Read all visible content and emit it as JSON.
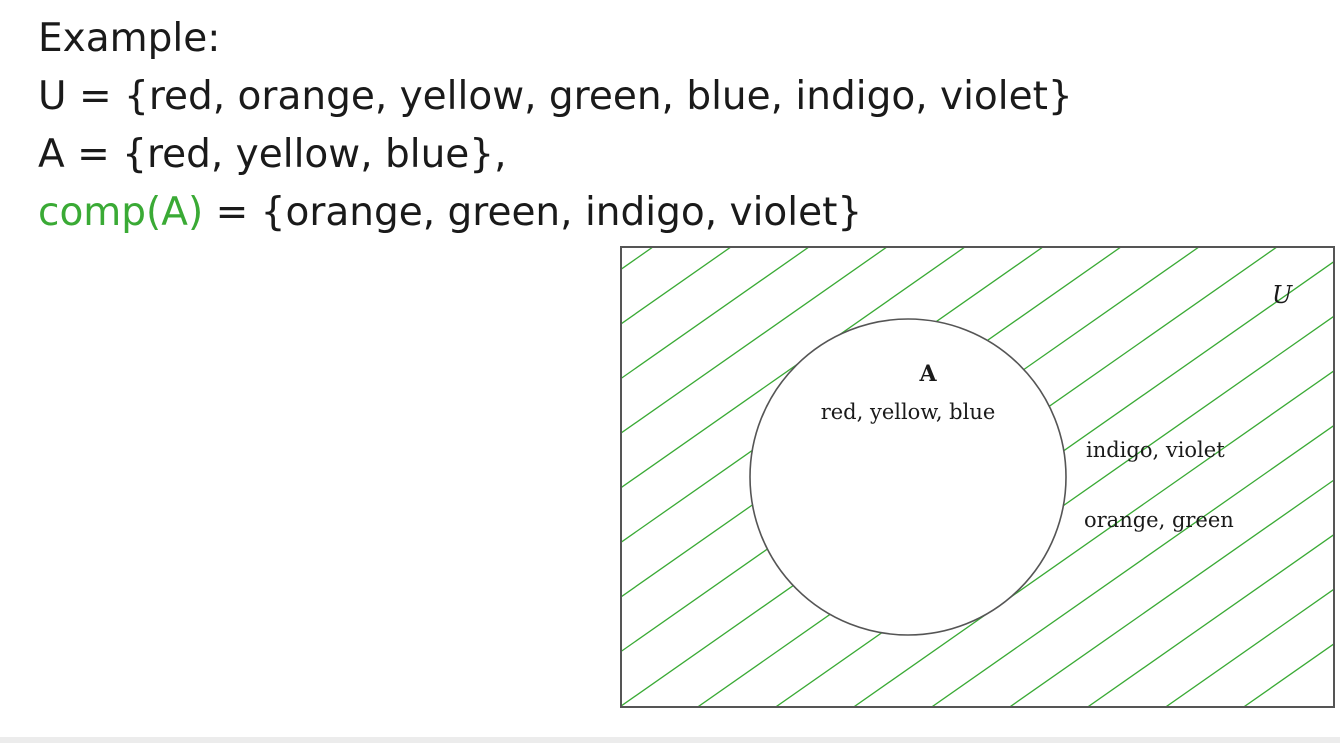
{
  "slide": {
    "heading": "Example:",
    "universe_line": "U = {red, orange, yellow, green, blue, indigo, violet}",
    "set_a_line": "A = {red, yellow, blue},",
    "complement_name": "comp(A)",
    "complement_rest": " = {orange, green, indigo, violet}"
  },
  "venn": {
    "universe_label": "U",
    "set_label": "A",
    "set_members": "red, yellow, blue",
    "outside_members_1": "indigo, violet",
    "outside_members_2": "orange, green"
  },
  "colors": {
    "accent": "#3aaa35",
    "hatch": "#3aaa35",
    "outline": "#555555"
  }
}
